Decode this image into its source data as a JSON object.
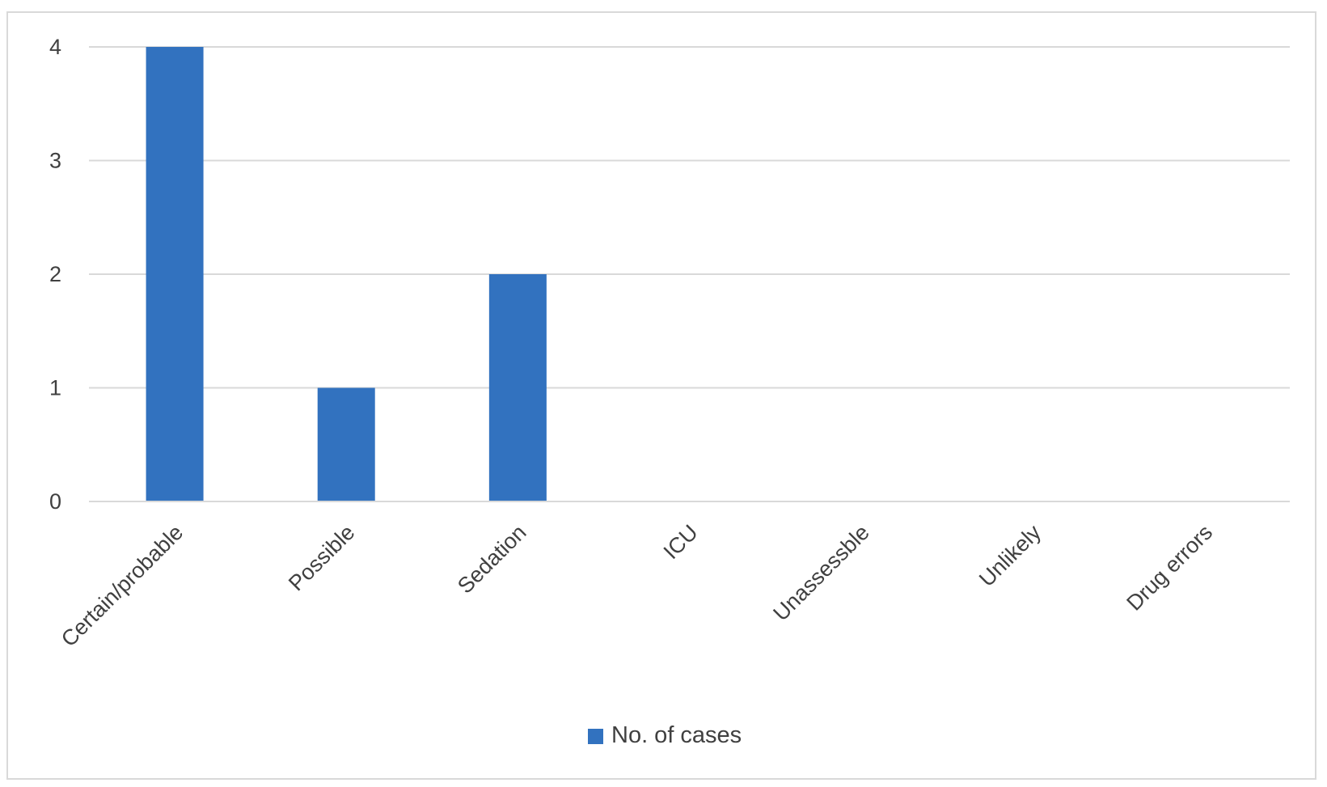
{
  "chart_data": {
    "type": "bar",
    "categories": [
      "Certain/probable",
      "Possible",
      "Sedation",
      "ICU",
      "Unassessble",
      "Unlikely",
      "Drug errors"
    ],
    "series": [
      {
        "name": "No. of cases",
        "values": [
          4,
          1,
          2,
          0,
          0,
          0,
          0
        ],
        "color": "#3272bf"
      }
    ],
    "ylim": [
      0,
      4
    ],
    "yticks": [
      "0",
      "1",
      "2",
      "3",
      "4"
    ],
    "grid": true,
    "legend": "bottom-center"
  }
}
